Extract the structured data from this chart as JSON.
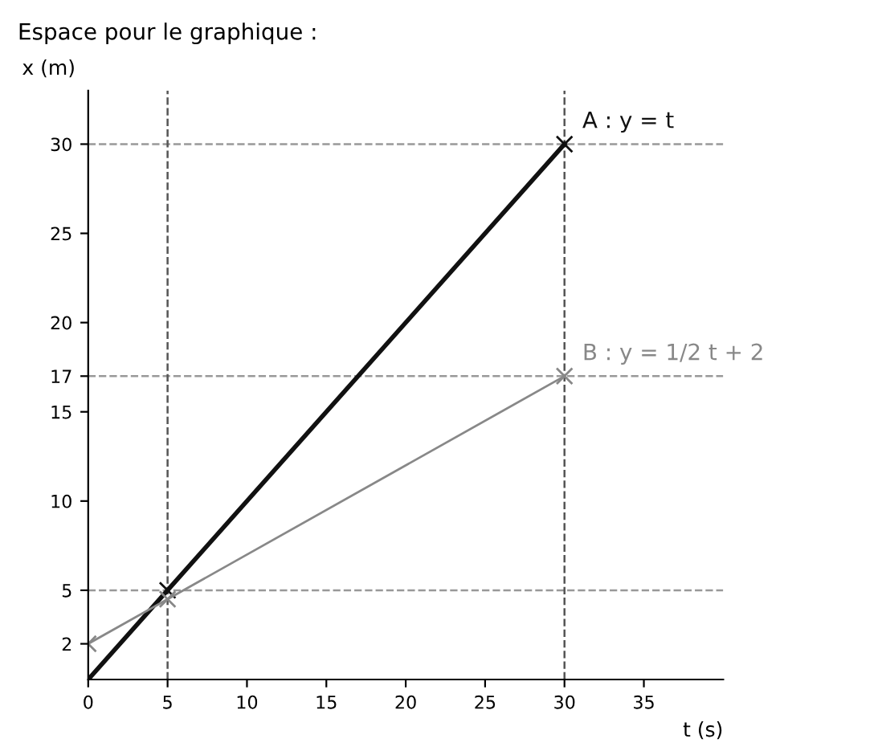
{
  "chart_data": {
    "type": "line",
    "title": "Espace pour le graphique :",
    "xlabel": "t (s)",
    "ylabel": "x (m)",
    "xlim": [
      0,
      40
    ],
    "ylim": [
      0,
      33
    ],
    "xticks": [
      0,
      5,
      10,
      15,
      20,
      25,
      30,
      35
    ],
    "yticks": [
      2,
      5,
      10,
      15,
      17,
      20,
      25,
      30
    ],
    "grid": false,
    "marker": "cross",
    "line_style": "solid",
    "series": [
      {
        "name": "A : y = t",
        "color": "#111111",
        "x": [
          0,
          5,
          30
        ],
        "values": [
          0,
          5,
          30
        ]
      },
      {
        "name": "B : y = 1/2 t + 2",
        "color": "#888888",
        "x": [
          0,
          5,
          30
        ],
        "values": [
          2,
          4.5,
          17
        ]
      }
    ],
    "ref_lines": [
      {
        "axis": "y",
        "value": 30,
        "color": "#999999",
        "line_style": "dashed"
      },
      {
        "axis": "y",
        "value": 17,
        "color": "#999999",
        "line_style": "dashed"
      },
      {
        "axis": "y",
        "value": 5,
        "color": "#999999",
        "line_style": "dashed"
      },
      {
        "axis": "x",
        "value": 30,
        "color": "#555555",
        "line_style": "dashed"
      },
      {
        "axis": "x",
        "value": 5,
        "color": "#555555",
        "line_style": "dashed"
      }
    ]
  }
}
